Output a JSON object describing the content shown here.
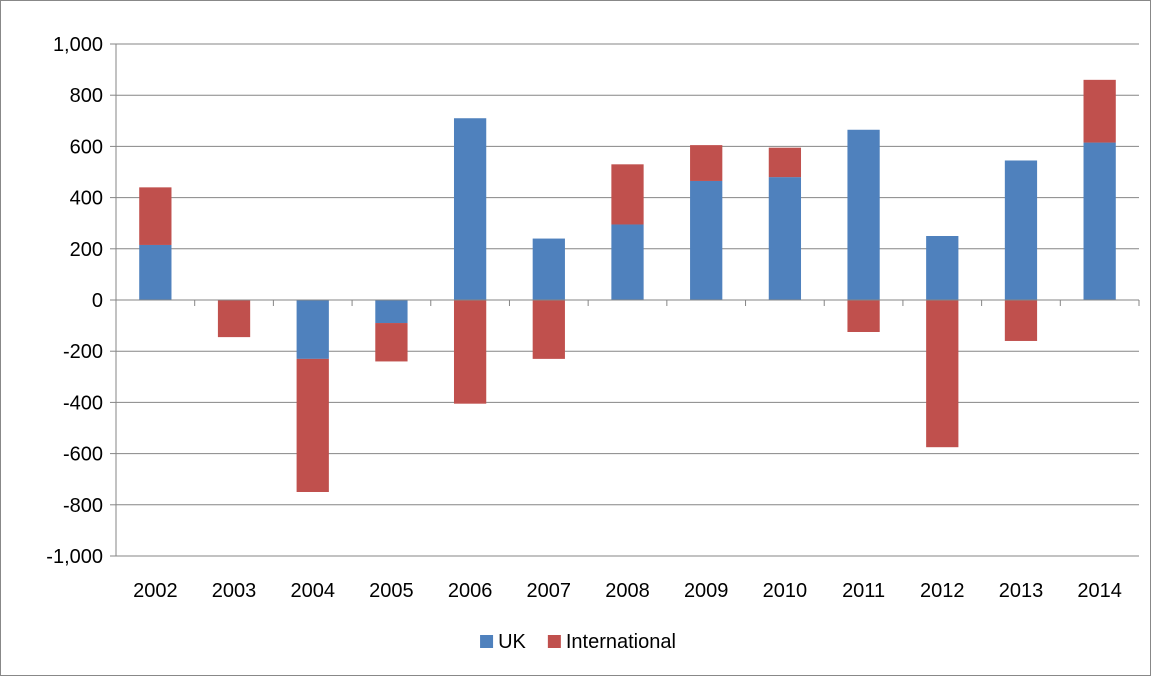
{
  "chart_data": {
    "type": "bar",
    "stacked": true,
    "categories": [
      "2002",
      "2003",
      "2004",
      "2005",
      "2006",
      "2007",
      "2008",
      "2009",
      "2010",
      "2011",
      "2012",
      "2013",
      "2014"
    ],
    "series": [
      {
        "name": "UK",
        "color": "#4F81BD",
        "values": [
          215,
          0,
          -230,
          -90,
          710,
          240,
          295,
          465,
          480,
          665,
          250,
          545,
          615
        ]
      },
      {
        "name": "International",
        "color": "#C0504D",
        "values": [
          225,
          -145,
          -520,
          -150,
          -405,
          -230,
          235,
          140,
          115,
          -125,
          -575,
          -160,
          245
        ]
      }
    ],
    "title": "",
    "xlabel": "",
    "ylabel": "",
    "ylim": [
      -1000,
      1000
    ],
    "yticks": [
      -1000,
      -800,
      -600,
      -400,
      -200,
      0,
      200,
      400,
      600,
      800,
      1000
    ],
    "ytick_labels": [
      "-1,000",
      "-800",
      "-600",
      "-400",
      "-200",
      "0",
      "200",
      "400",
      "600",
      "800",
      "1,000"
    ],
    "grid": true,
    "gridline_color": "#868686",
    "legend_position": "bottom"
  }
}
